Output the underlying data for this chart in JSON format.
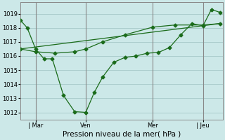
{
  "background_color": "#cce8e8",
  "grid_color": "#aacccc",
  "line_color": "#1a6b1a",
  "xlabel": "Pression niveau de la mer( hPa )",
  "ylim": [
    1011.5,
    1019.8
  ],
  "yticks": [
    1012,
    1013,
    1014,
    1015,
    1016,
    1017,
    1018,
    1019
  ],
  "xtick_labels": [
    " Mar",
    "Ven",
    "Mer",
    "| Jeu"
  ],
  "xtick_positions": [
    16,
    52,
    100,
    136
  ],
  "vline_positions": [
    16,
    52,
    100,
    136
  ],
  "xlim": [
    5,
    150
  ],
  "line1_x": [
    5,
    10,
    16,
    22,
    28,
    36,
    44,
    52,
    58,
    64,
    72,
    80,
    88,
    96,
    104,
    112,
    120,
    128,
    136,
    142,
    148
  ],
  "line1_y": [
    1018.55,
    1018.0,
    1016.5,
    1015.8,
    1015.8,
    1013.2,
    1012.05,
    1012.0,
    1013.4,
    1014.5,
    1015.55,
    1015.9,
    1016.0,
    1016.2,
    1016.25,
    1016.6,
    1017.5,
    1018.3,
    1018.15,
    1019.3,
    1019.1
  ],
  "line2_x": [
    5,
    16,
    30,
    44,
    52,
    64,
    80,
    100,
    116,
    136,
    148
  ],
  "line2_y": [
    1016.5,
    1016.3,
    1016.2,
    1016.3,
    1016.5,
    1017.0,
    1017.5,
    1018.05,
    1018.2,
    1018.2,
    1018.3
  ],
  "line3_x": [
    5,
    148
  ],
  "line3_y": [
    1016.5,
    1018.3
  ],
  "marker_size": 2.5,
  "linewidth": 0.9,
  "tick_fontsize": 6,
  "xlabel_fontsize": 7.5
}
